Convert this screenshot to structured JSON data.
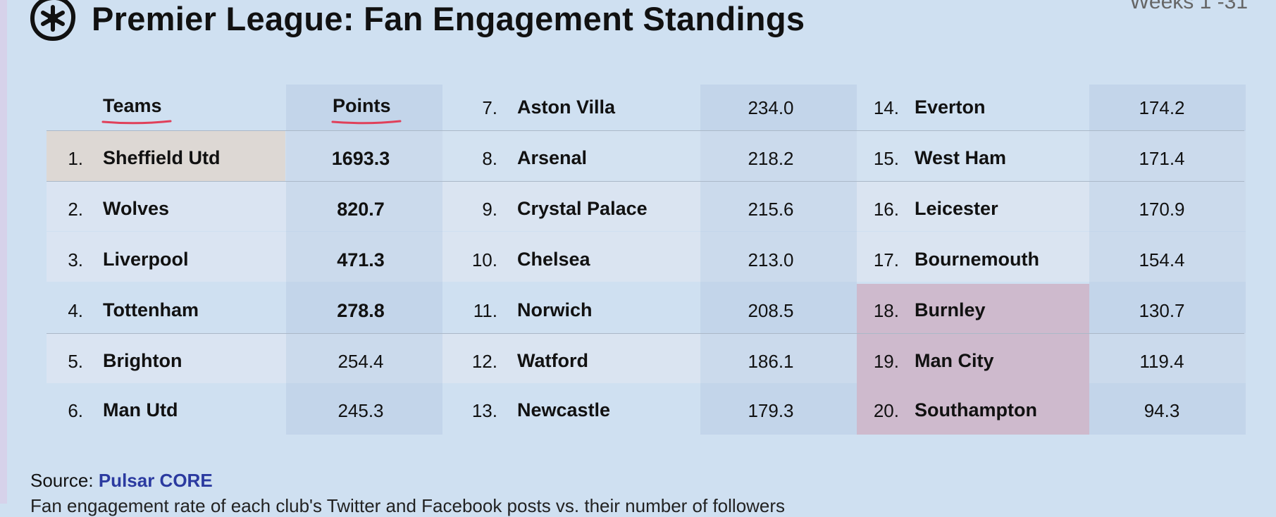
{
  "header": {
    "title": "Premier League: Fan Engagement Standings",
    "weeks": "Weeks 1 -31"
  },
  "columns": {
    "teams_label": "Teams",
    "points_label": "Points"
  },
  "footer": {
    "source_label": "Source:",
    "source_link": "Pulsar CORE",
    "note": "Fan engagement rate of each club's Twitter and Facebook posts vs. their number of followers"
  },
  "colors": {
    "background": "#cfe0f1",
    "column_band": "#c3d5ea",
    "leader_highlight": "#ddd8d4",
    "relegation_highlight": "#cebacd",
    "underline": "#e0405a",
    "link": "#2b3aa0"
  },
  "chart_data": {
    "type": "table",
    "title": "Premier League: Fan Engagement Standings",
    "columns": [
      "Teams",
      "Points"
    ],
    "rows": [
      {
        "rank": "1.",
        "team": "Sheffield Utd",
        "points": "1693.3"
      },
      {
        "rank": "2.",
        "team": "Wolves",
        "points": "820.7"
      },
      {
        "rank": "3.",
        "team": "Liverpool",
        "points": "471.3"
      },
      {
        "rank": "4.",
        "team": "Tottenham",
        "points": "278.8"
      },
      {
        "rank": "5.",
        "team": "Brighton",
        "points": "254.4"
      },
      {
        "rank": "6.",
        "team": "Man Utd",
        "points": "245.3"
      },
      {
        "rank": "7.",
        "team": "Aston Villa",
        "points": "234.0"
      },
      {
        "rank": "8.",
        "team": "Arsenal",
        "points": "218.2"
      },
      {
        "rank": "9.",
        "team": "Crystal Palace",
        "points": "215.6"
      },
      {
        "rank": "10.",
        "team": "Chelsea",
        "points": "213.0"
      },
      {
        "rank": "11.",
        "team": "Norwich",
        "points": "208.5"
      },
      {
        "rank": "12.",
        "team": "Watford",
        "points": "186.1"
      },
      {
        "rank": "13.",
        "team": "Newcastle",
        "points": "179.3"
      },
      {
        "rank": "14.",
        "team": "Everton",
        "points": "174.2"
      },
      {
        "rank": "15.",
        "team": "West Ham",
        "points": "171.4"
      },
      {
        "rank": "16.",
        "team": "Leicester",
        "points": "170.9"
      },
      {
        "rank": "17.",
        "team": "Bournemouth",
        "points": "154.4"
      },
      {
        "rank": "18.",
        "team": "Burnley",
        "points": "130.7"
      },
      {
        "rank": "19.",
        "team": "Man City",
        "points": "119.4"
      },
      {
        "rank": "20.",
        "team": "Southampton",
        "points": "94.3"
      }
    ]
  }
}
